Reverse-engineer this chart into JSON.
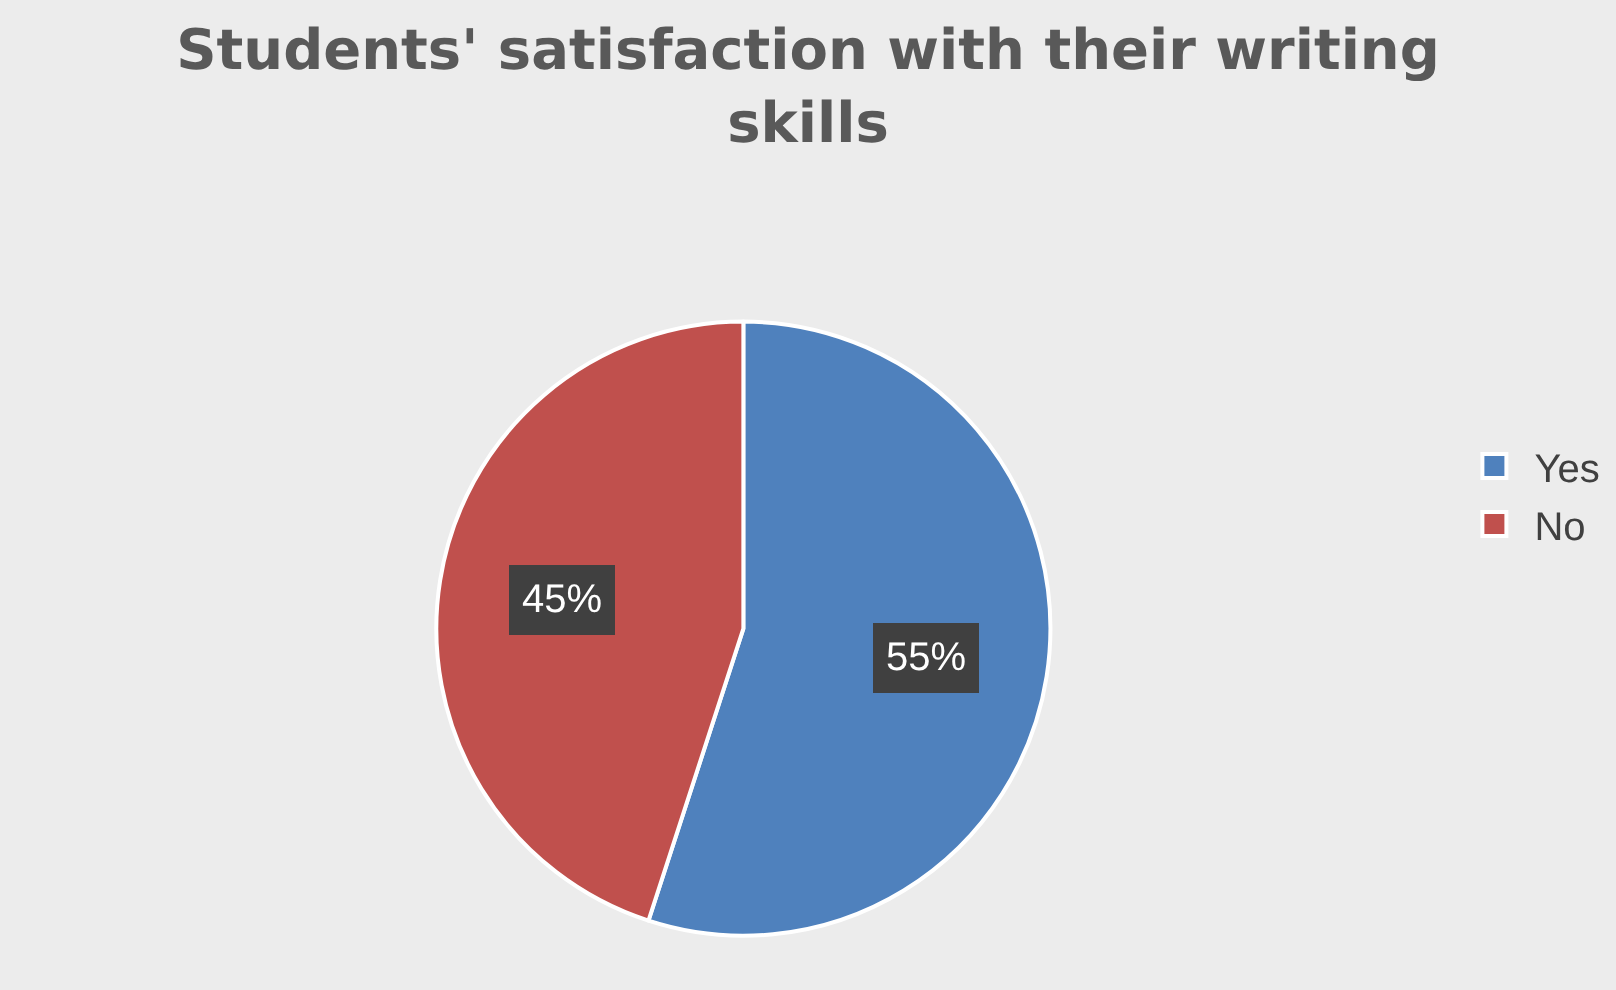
{
  "chart_data": {
    "type": "pie",
    "title": "Students' satisfaction with their writing skills",
    "categories": [
      "Yes",
      "No"
    ],
    "values": [
      55,
      45
    ],
    "colors": [
      "#4f81bd",
      "#c0504d"
    ],
    "value_labels": [
      "55%",
      "45%"
    ],
    "legend": "right"
  }
}
